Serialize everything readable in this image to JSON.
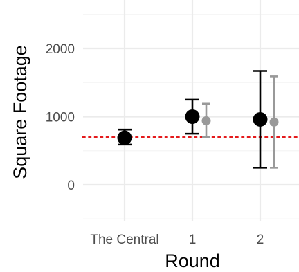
{
  "chart_data": {
    "type": "scatter",
    "subtype": "point-with-errorbars",
    "xlabel": "Round",
    "ylabel": "Square Footage",
    "categories": [
      "The Central",
      "1",
      "2"
    ],
    "yticks": [
      0,
      1000,
      2000
    ],
    "ylim": [
      -520,
      2620
    ],
    "grid": true,
    "reference_line": {
      "y": 700,
      "color": "#e41a1c",
      "style": "dotted"
    },
    "series": [
      {
        "color": "#000000",
        "points": [
          {
            "category": "The Central",
            "y": 690,
            "low": 590,
            "high": 810
          },
          {
            "category": "1",
            "y": 1000,
            "low": 750,
            "high": 1250
          },
          {
            "category": "2",
            "y": 960,
            "low": 250,
            "high": 1670
          }
        ]
      },
      {
        "color": "#999999",
        "points": [
          {
            "category": "1",
            "y": 940,
            "low": 700,
            "high": 1190
          },
          {
            "category": "2",
            "y": 920,
            "low": 250,
            "high": 1590
          }
        ]
      }
    ]
  }
}
